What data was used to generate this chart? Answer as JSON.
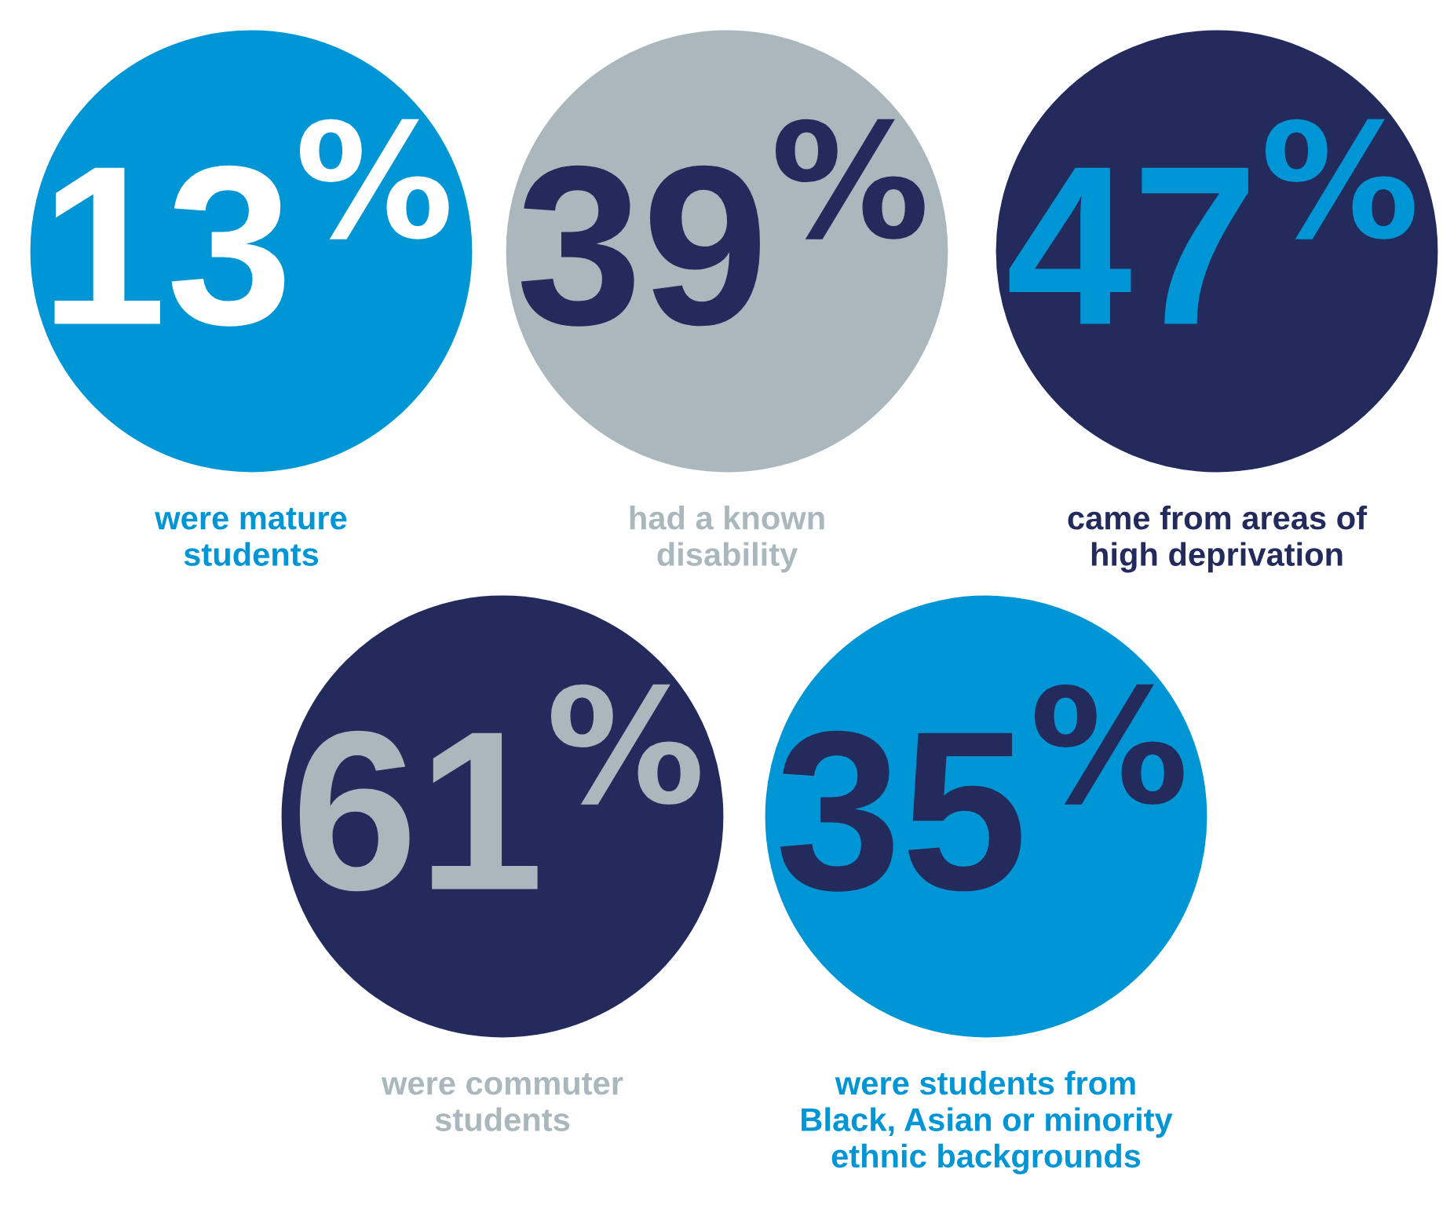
{
  "chart_data": {
    "type": "other",
    "categories": [
      "were mature\nstudents",
      "had a known\ndisability",
      "came from areas of\nhigh deprivation",
      "were commuter\nstudents",
      "were students from\nBlack, Asian or minority\nethnic backgrounds"
    ],
    "values": [
      13,
      39,
      47,
      61,
      35
    ],
    "value_labels": [
      "13$^{%}$",
      "39$^{%}$",
      "47$^{%}$",
      "61$^{%}$",
      "35$^{%}$"
    ],
    "colors": [
      "#0096d6",
      "#aab8bd",
      "#232a5c",
      "#232a5c",
      "#0096d6"
    ]
  }
}
